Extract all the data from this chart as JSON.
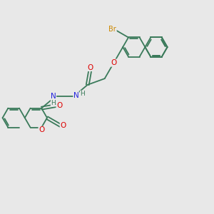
{
  "background_color": "#e8e8e8",
  "bond_color": "#3a7a5a",
  "atom_colors": {
    "O": "#dd0000",
    "N": "#2222dd",
    "Br": "#cc8800",
    "C": "#3a7a5a",
    "H": "#3a7a5a"
  },
  "bond_lw": 1.3,
  "font_size_atom": 7.5,
  "font_size_br": 7.0
}
